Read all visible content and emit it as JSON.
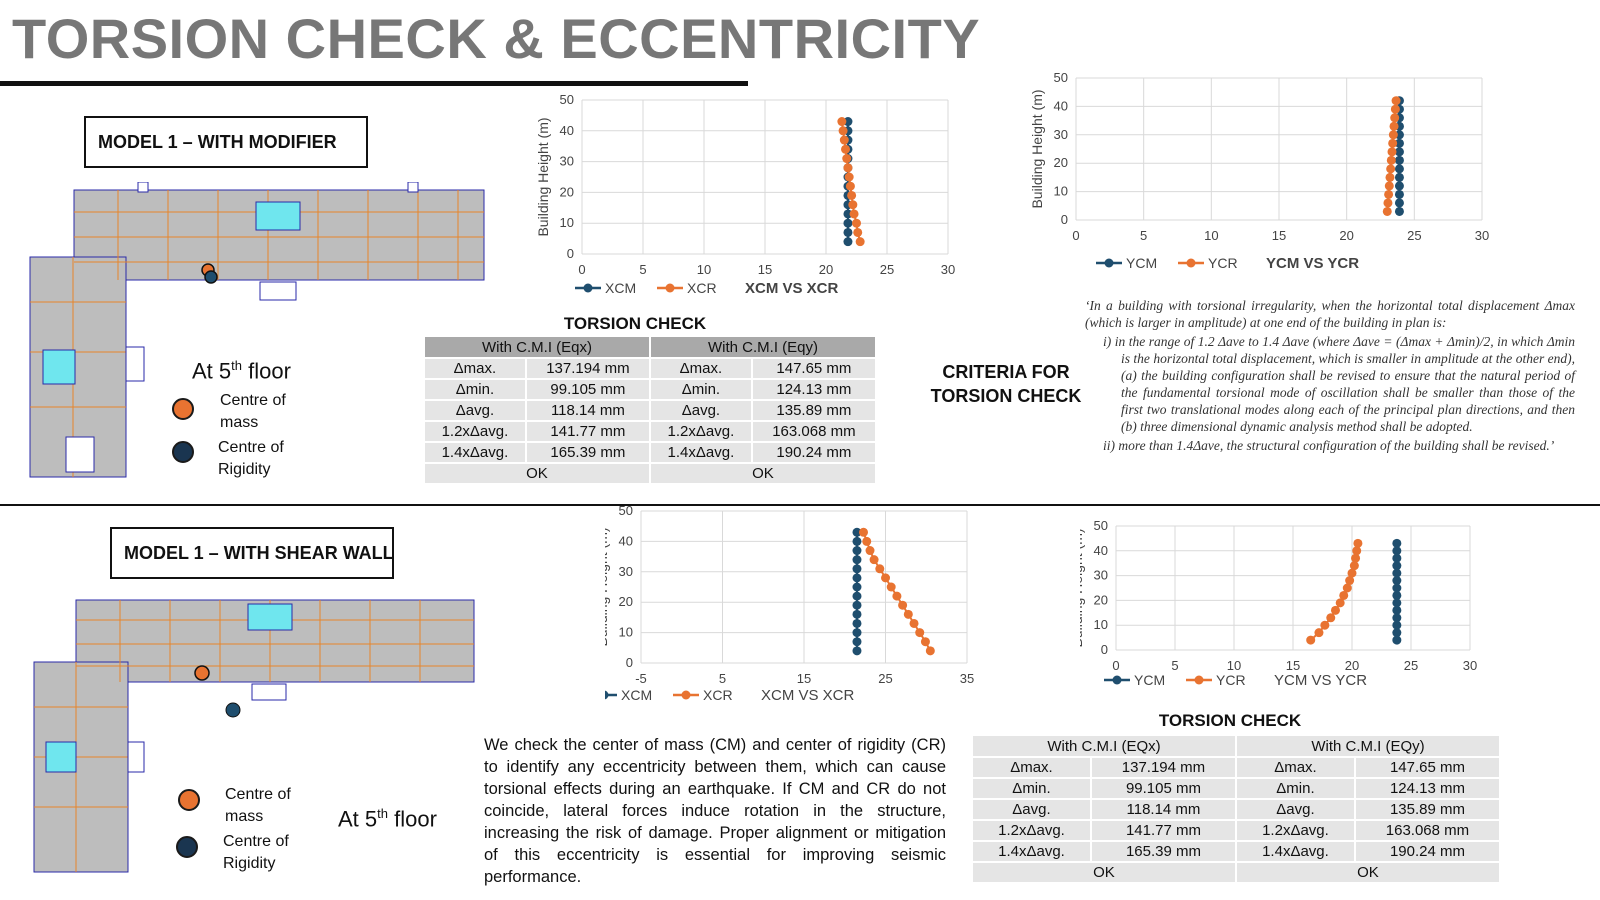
{
  "page": {
    "title": "TORSION CHECK & ECCENTRICITY"
  },
  "colors": {
    "cm": "#e87331",
    "cr": "#1f4e6e",
    "title": "#777777",
    "header": "#a9a9a9",
    "cell": "#e5e5e5"
  },
  "top": {
    "model_label": "MODEL 1 – WITH MODIFIER",
    "floor_prefix": "At 5",
    "floor_sup": "th",
    "floor_suffix": " floor",
    "legend": [
      {
        "icon": "orange-circle-icon",
        "line1": "Centre of",
        "line2": "mass"
      },
      {
        "icon": "navy-circle-icon",
        "line1": "Centre of",
        "line2": "Rigidity"
      }
    ],
    "torsion_title": "TORSION CHECK",
    "criteria_label_1": "CRITERIA FOR",
    "criteria_label_2": "TORSION CHECK",
    "quote_intro": "‘In a building with torsional irregularity, when the horizontal total displacement Δmax (which is larger in amplitude) at one end of the building in plan is:",
    "quote_i": "i)  in the range of 1.2 Δave to 1.4 Δave (where Δave = (Δmax + Δmin)/2, in which Δmin is the horizontal total displacement, which is smaller in amplitude at the other end), (a) the building configuration shall be revised to ensure that the natural period of the fundamental torsional mode of oscillation shall be smaller than those of the first two translational modes along each of the principal plan directions, and then (b) three dimensional dynamic analysis method shall be adopted.",
    "quote_ii": "ii)  more than 1.4Δave, the structural configuration of the building shall be revised.’"
  },
  "bottom": {
    "model_label": "MODEL 1 – WITH SHEAR WALL",
    "floor_prefix": "At 5",
    "floor_sup": "th",
    "floor_suffix": " floor",
    "legend": [
      {
        "icon": "orange-circle-icon",
        "line1": "Centre of",
        "line2": "mass"
      },
      {
        "icon": "navy-circle-icon",
        "line1": "Centre of",
        "line2": "Rigidity"
      }
    ],
    "torsion_title": "TORSION CHECK",
    "paragraph": "We check the center of mass (CM) and center of rigidity (CR) to identify any eccentricity between them, which can cause torsional effects during an earthquake. If CM and CR do not coincide, lateral forces induce rotation in the structure, increasing the risk of damage. Proper alignment or mitigation of this eccentricity is essential for improving seismic performance."
  },
  "table_top": {
    "headers": [
      "With C.M.I (Eqx)",
      "With C.M.I (Eqy)"
    ],
    "rows": [
      [
        "Δmax.",
        "137.194 mm",
        "Δmax.",
        "147.65 mm"
      ],
      [
        "Δmin.",
        "99.105 mm",
        "Δmin.",
        "124.13 mm"
      ],
      [
        "Δavg.",
        "118.14 mm",
        "Δavg.",
        "135.89 mm"
      ],
      [
        "1.2xΔavg.",
        "141.77 mm",
        "1.2xΔavg.",
        "163.068 mm"
      ],
      [
        "1.4xΔavg.",
        "165.39 mm",
        "1.4xΔavg.",
        "190.24 mm"
      ]
    ],
    "status": [
      "OK",
      "OK"
    ]
  },
  "table_bottom": {
    "headers": [
      "With C.M.I (EQx)",
      "With C.M.I (EQy)"
    ],
    "rows": [
      [
        "Δmax.",
        "137.194 mm",
        "Δmax.",
        "147.65 mm"
      ],
      [
        "Δmin.",
        "99.105 mm",
        "Δmin.",
        "124.13 mm"
      ],
      [
        "Δavg.",
        "118.14 mm",
        "Δavg.",
        "135.89 mm"
      ],
      [
        "1.2xΔavg.",
        "141.77 mm",
        "1.2xΔavg.",
        "163.068 mm"
      ],
      [
        "1.4xΔavg.",
        "165.39 mm",
        "1.4xΔavg.",
        "190.24 mm"
      ]
    ],
    "status": [
      "OK",
      "OK"
    ]
  },
  "chart_data": [
    {
      "type": "scatter",
      "title": "XCM VS XCR",
      "ylabel": "Building Height (m)",
      "xlim": [
        0,
        30
      ],
      "ylim": [
        0,
        50
      ],
      "xticks": [
        0,
        5,
        10,
        15,
        20,
        25,
        30
      ],
      "yticks": [
        0,
        10,
        20,
        30,
        40,
        50
      ],
      "series": [
        {
          "name": "XCM",
          "x": [
            21.8,
            21.8,
            21.8,
            21.8,
            21.8,
            21.8,
            21.8,
            21.8,
            21.8,
            21.8,
            21.8,
            21.8,
            21.8,
            21.8
          ],
          "y": [
            4,
            7,
            10,
            13,
            16,
            19,
            22,
            25,
            28,
            31,
            34,
            37,
            40,
            43
          ]
        },
        {
          "name": "XCR",
          "x": [
            22.8,
            22.6,
            22.5,
            22.3,
            22.2,
            22.1,
            22,
            21.9,
            21.8,
            21.7,
            21.6,
            21.5,
            21.4,
            21.3
          ],
          "y": [
            4,
            7,
            10,
            13,
            16,
            19,
            22,
            25,
            28,
            31,
            34,
            37,
            40,
            43
          ]
        }
      ]
    },
    {
      "type": "scatter",
      "title": "YCM VS YCR",
      "ylabel": "Building Height (m)",
      "xlim": [
        0,
        30
      ],
      "ylim": [
        0,
        50
      ],
      "xticks": [
        0,
        5,
        10,
        15,
        20,
        25,
        30
      ],
      "yticks": [
        0,
        10,
        20,
        30,
        40,
        50
      ],
      "series": [
        {
          "name": "YCM",
          "x": [
            23.9,
            23.9,
            23.9,
            23.9,
            23.9,
            23.9,
            23.9,
            23.9,
            23.9,
            23.9,
            23.9,
            23.9,
            23.9,
            23.9
          ],
          "y": [
            3,
            6,
            9,
            12,
            15,
            18,
            21,
            24,
            27,
            30,
            33,
            36,
            39,
            42
          ]
        },
        {
          "name": "YCR",
          "x": [
            23,
            23.05,
            23.1,
            23.15,
            23.2,
            23.25,
            23.3,
            23.35,
            23.4,
            23.45,
            23.5,
            23.55,
            23.6,
            23.65
          ],
          "y": [
            3,
            6,
            9,
            12,
            15,
            18,
            21,
            24,
            27,
            30,
            33,
            36,
            39,
            42
          ]
        }
      ]
    },
    {
      "type": "scatter",
      "title": "XCM VS XCR",
      "ylabel": "Building Height (m)",
      "xlim": [
        -5,
        35
      ],
      "ylim": [
        0,
        50
      ],
      "xticks": [
        -5,
        5,
        15,
        25,
        35
      ],
      "yticks": [
        0,
        10,
        20,
        30,
        40,
        50
      ],
      "series": [
        {
          "name": "XCM",
          "x": [
            21.5,
            21.5,
            21.5,
            21.5,
            21.5,
            21.5,
            21.5,
            21.5,
            21.5,
            21.5,
            21.5,
            21.5,
            21.5,
            21.5
          ],
          "y": [
            4,
            7,
            10,
            13,
            16,
            19,
            22,
            25,
            28,
            31,
            34,
            37,
            40,
            43
          ]
        },
        {
          "name": "XCR",
          "x": [
            30.5,
            29.9,
            29.2,
            28.5,
            27.8,
            27.1,
            26.4,
            25.7,
            25,
            24.3,
            23.6,
            23.1,
            22.7,
            22.3
          ],
          "y": [
            4,
            7,
            10,
            13,
            16,
            19,
            22,
            25,
            28,
            31,
            34,
            37,
            40,
            43
          ]
        }
      ]
    },
    {
      "type": "scatter",
      "title": "YCM VS YCR",
      "ylabel": "Building Height (m)",
      "xlim": [
        0,
        30
      ],
      "ylim": [
        0,
        50
      ],
      "xticks": [
        0,
        5,
        10,
        15,
        20,
        25,
        30
      ],
      "yticks": [
        0,
        10,
        20,
        30,
        40,
        50
      ],
      "series": [
        {
          "name": "YCM",
          "x": [
            23.8,
            23.8,
            23.8,
            23.8,
            23.8,
            23.8,
            23.8,
            23.8,
            23.8,
            23.8,
            23.8,
            23.8,
            23.8,
            23.8
          ],
          "y": [
            4,
            7,
            10,
            13,
            16,
            19,
            22,
            25,
            28,
            31,
            34,
            37,
            40,
            43
          ]
        },
        {
          "name": "YCR",
          "x": [
            16.5,
            17.2,
            17.7,
            18.2,
            18.6,
            19,
            19.3,
            19.6,
            19.8,
            20,
            20.2,
            20.3,
            20.4,
            20.5
          ],
          "y": [
            4,
            7,
            10,
            13,
            16,
            19,
            22,
            25,
            28,
            31,
            34,
            37,
            40,
            43
          ]
        }
      ]
    }
  ]
}
